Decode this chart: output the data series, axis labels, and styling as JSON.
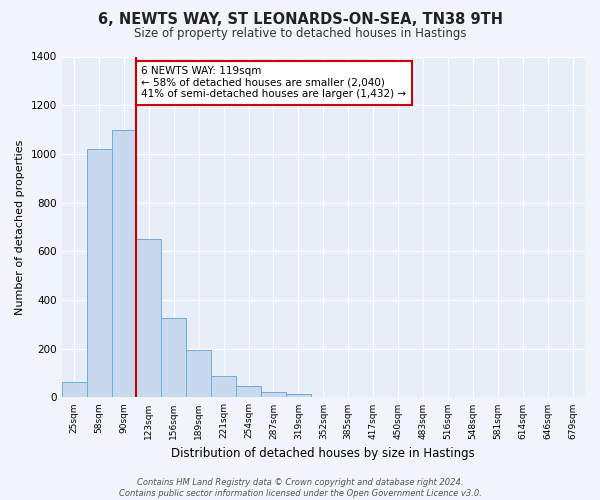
{
  "title": "6, NEWTS WAY, ST LEONARDS-ON-SEA, TN38 9TH",
  "subtitle": "Size of property relative to detached houses in Hastings",
  "xlabel": "Distribution of detached houses by size in Hastings",
  "ylabel": "Number of detached properties",
  "bar_color": "#c8d8ee",
  "bar_edge_color": "#6aaed6",
  "background_color": "#e8eef8",
  "fig_background_color": "#f2f4fb",
  "grid_color": "#ffffff",
  "bin_labels": [
    "25sqm",
    "58sqm",
    "90sqm",
    "123sqm",
    "156sqm",
    "189sqm",
    "221sqm",
    "254sqm",
    "287sqm",
    "319sqm",
    "352sqm",
    "385sqm",
    "417sqm",
    "450sqm",
    "483sqm",
    "516sqm",
    "548sqm",
    "581sqm",
    "614sqm",
    "646sqm",
    "679sqm"
  ],
  "bar_values": [
    65,
    1020,
    1100,
    650,
    325,
    195,
    88,
    48,
    22,
    13,
    0,
    0,
    0,
    0,
    0,
    0,
    0,
    0,
    0,
    0,
    0
  ],
  "ylim": [
    0,
    1400
  ],
  "yticks": [
    0,
    200,
    400,
    600,
    800,
    1000,
    1200,
    1400
  ],
  "vline_color": "#cc0000",
  "annotation_line1": "6 NEWTS WAY: 119sqm",
  "annotation_line2": "← 58% of detached houses are smaller (2,040)",
  "annotation_line3": "41% of semi-detached houses are larger (1,432) →",
  "annotation_box_color": "#ffffff",
  "annotation_box_edge": "#cc0000",
  "footer_text": "Contains HM Land Registry data © Crown copyright and database right 2024.\nContains public sector information licensed under the Open Government Licence v3.0.",
  "bar_width": 1.0
}
